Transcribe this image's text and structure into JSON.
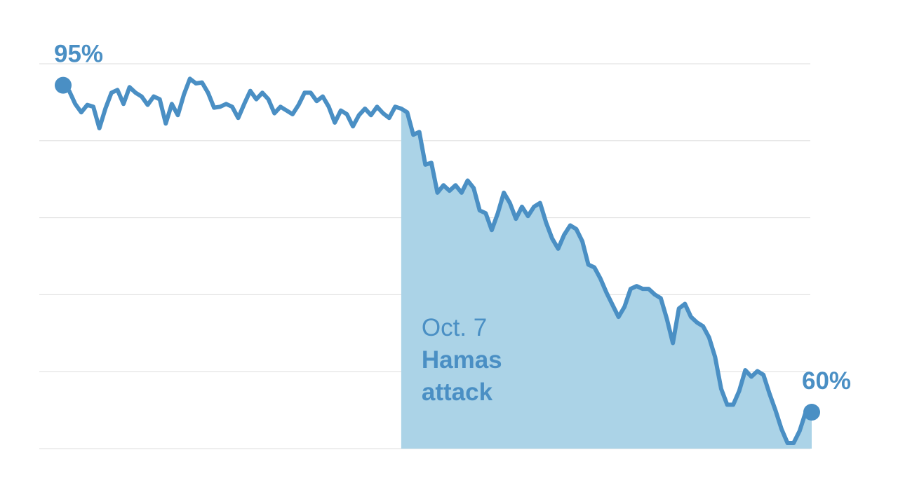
{
  "chart_data": {
    "type": "line",
    "series": [
      {
        "color": "#4a8fc4",
        "fill": "#abd3e7",
        "values": [
          95.0,
          94.4,
          93.0,
          92.1,
          92.9,
          92.7,
          90.4,
          92.5,
          94.2,
          94.5,
          93.0,
          94.8,
          94.2,
          93.8,
          92.9,
          93.8,
          93.5,
          90.9,
          93.0,
          91.8,
          94.0,
          95.7,
          95.2,
          95.3,
          94.2,
          92.6,
          92.7,
          93.0,
          92.7,
          91.5,
          93.0,
          94.4,
          93.5,
          94.2,
          93.5,
          92.0,
          92.7,
          92.3,
          91.9,
          92.9,
          94.2,
          94.2,
          93.3,
          93.8,
          92.7,
          91.0,
          92.3,
          91.9,
          90.6,
          91.8,
          92.5,
          91.8,
          92.7,
          92.0,
          91.5,
          92.7,
          92.5,
          92.1,
          89.7,
          90.0,
          86.5,
          86.7,
          83.5,
          84.3,
          83.7,
          84.3,
          83.5,
          84.8,
          84.0,
          81.6,
          81.3,
          79.5,
          81.3,
          83.5,
          82.4,
          80.7,
          82.0,
          81.0,
          82.0,
          82.4,
          80.3,
          78.6,
          77.5,
          79.0,
          80.0,
          79.6,
          78.3,
          75.8,
          75.5,
          74.3,
          72.8,
          71.5,
          70.2,
          71.3,
          73.2,
          73.5,
          73.2,
          73.2,
          72.6,
          72.2,
          70.0,
          67.4,
          71.1,
          71.6,
          70.2,
          69.6,
          69.2,
          68.0,
          65.9,
          62.5,
          60.8,
          60.8,
          62.3,
          64.5,
          63.8,
          64.4,
          64.0,
          62.0,
          60.2,
          58.2,
          56.7,
          56.7,
          58.0,
          60.0,
          60.0
        ],
        "start_label": "95%",
        "end_label": "60%"
      }
    ],
    "annotation": {
      "lines": [
        "Oct. 7",
        "Hamas",
        "attack"
      ],
      "index": 56
    },
    "ylim": [
      56.1,
      97.3
    ],
    "grid": true
  }
}
